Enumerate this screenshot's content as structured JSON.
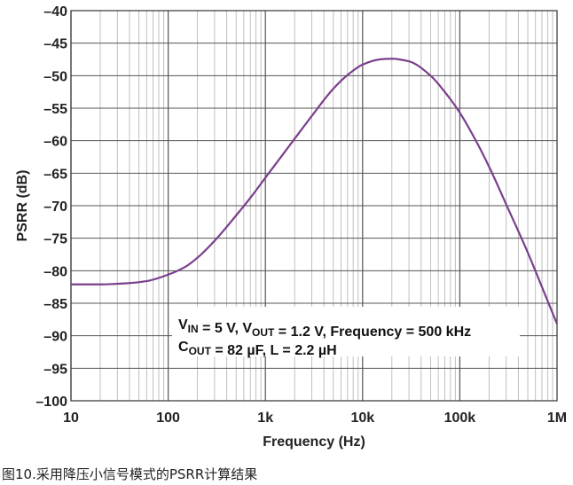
{
  "chart_data": {
    "type": "line",
    "title": "",
    "xlabel": "Frequency (Hz)",
    "ylabel": "PSRR (dB)",
    "xscale": "log",
    "xlim": [
      10,
      1000000
    ],
    "ylim": [
      -100,
      -40
    ],
    "x_ticks": [
      {
        "value": 10,
        "label": "10"
      },
      {
        "value": 100,
        "label": "100"
      },
      {
        "value": 1000,
        "label": "1k"
      },
      {
        "value": 10000,
        "label": "10k"
      },
      {
        "value": 100000,
        "label": "100k"
      },
      {
        "value": 1000000,
        "label": "1M"
      }
    ],
    "y_ticks": [
      -40,
      -45,
      -50,
      -55,
      -60,
      -65,
      -70,
      -75,
      -80,
      -85,
      -90,
      -95,
      -100
    ],
    "y_tick_labels": [
      "–40",
      "–45",
      "–50",
      "–55",
      "–60",
      "–65",
      "–70",
      "–75",
      "–80",
      "–85",
      "–90",
      "–95",
      "–100"
    ],
    "grid": true,
    "series": [
      {
        "color": "#7b3f8c",
        "x": [
          10,
          20,
          40,
          60,
          100,
          150,
          200,
          300,
          500,
          700,
          1000,
          2000,
          3000,
          5000,
          7000,
          10000,
          15000,
          20000,
          30000,
          50000,
          70000,
          100000,
          150000,
          200000,
          300000,
          500000,
          700000,
          1000000
        ],
        "y": [
          -82.1,
          -82.1,
          -81.9,
          -81.6,
          -80.6,
          -79.4,
          -78.0,
          -75.4,
          -71.5,
          -68.8,
          -65.7,
          -59.7,
          -56.2,
          -52.0,
          -49.9,
          -48.3,
          -47.5,
          -47.4,
          -47.8,
          -50.0,
          -52.5,
          -55.7,
          -60.3,
          -64.0,
          -69.8,
          -77.2,
          -82.5,
          -88.2
        ]
      }
    ],
    "annotations": [
      {
        "line1": {
          "parts": [
            {
              "text": "V"
            },
            {
              "text": "IN",
              "sub": true
            },
            {
              "text": " = 5 V, V"
            },
            {
              "text": "OUT",
              "sub": true
            },
            {
              "text": " = 1.2 V, Frequency = 500 kHz"
            }
          ]
        },
        "line2": {
          "parts": [
            {
              "text": "C"
            },
            {
              "text": "OUT",
              "sub": true
            },
            {
              "text": " = 82 µF, L = 2.2 µH"
            }
          ]
        }
      }
    ]
  },
  "caption": "图10.采用降压小信号模式的PSRR计算结果"
}
